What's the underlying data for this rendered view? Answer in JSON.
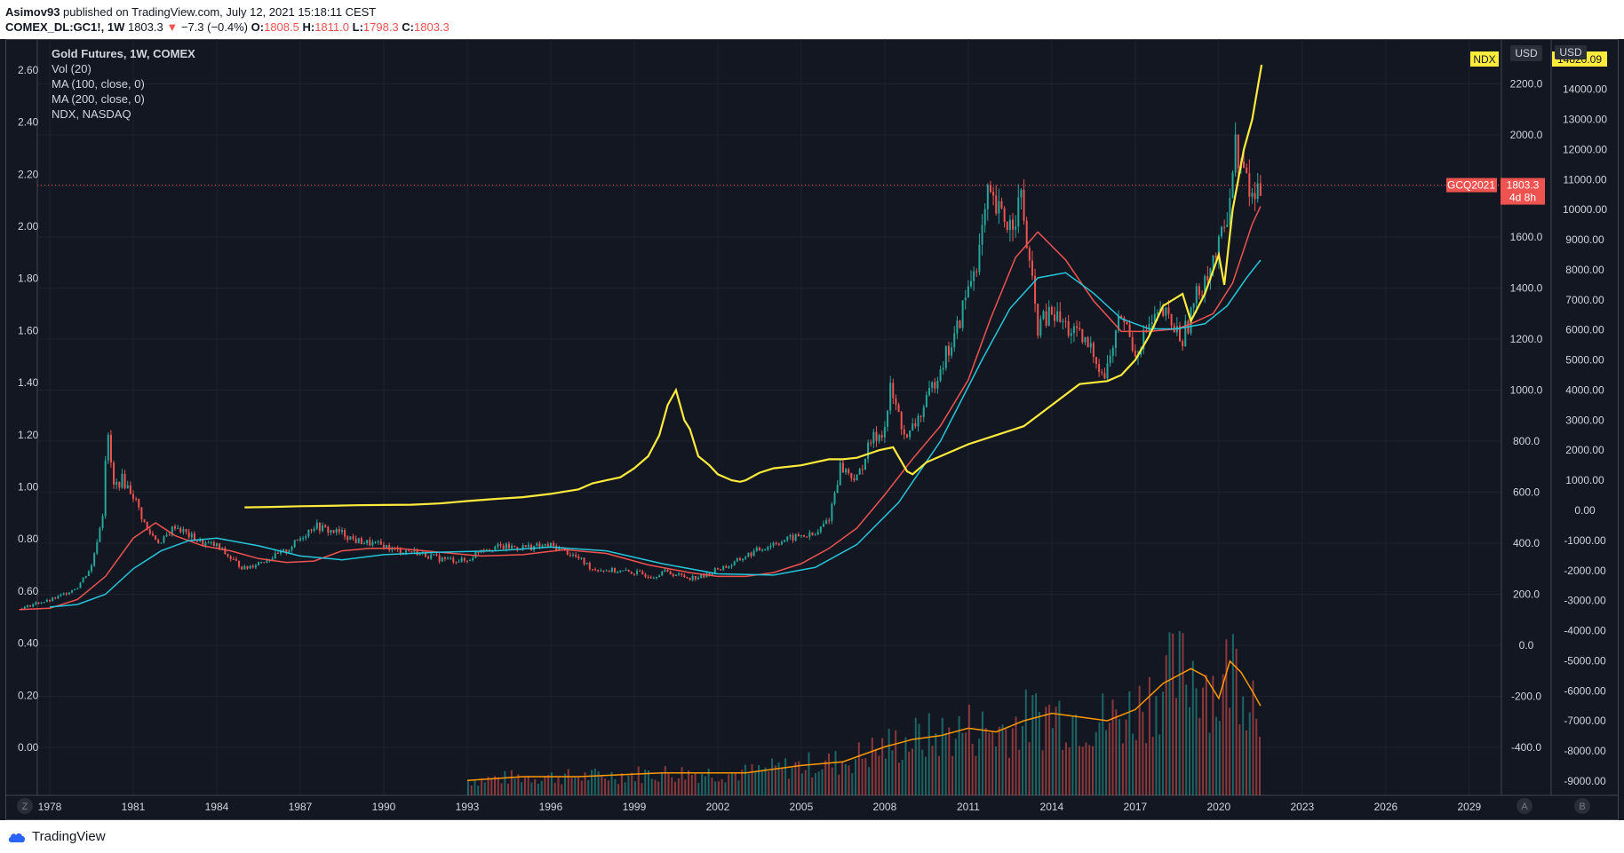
{
  "header": {
    "author": "Asimov93",
    "published": "published on TradingView.com, July 12, 2021 15:18:11 CEST",
    "symbol": "COMEX_DL:GC1!, 1W",
    "last": "1803.3",
    "arrow": "▼",
    "change": "−7.3 (−0.4%)",
    "o_label": "O:",
    "o_value": "1808.5",
    "h_label": "H:",
    "h_value": "1811.0",
    "l_label": "L:",
    "l_value": "1798.3",
    "c_label": "C:",
    "c_value": "1803.3"
  },
  "legend": {
    "title": "Gold Futures, 1W, COMEX",
    "vol": "Vol (20)",
    "ma100": "MA (100, close, 0)",
    "ma200": "MA (200, close, 0)",
    "ndx": "NDX, NASDAQ"
  },
  "badges": {
    "ndx": "NDX",
    "usd1": "USD",
    "usd2": "USD",
    "gc_symbol": "GCQ2021",
    "gc_price": "1803.3",
    "gc_countdown": "4d 8h",
    "ndx_price": "14820.09"
  },
  "footer": {
    "brand": "TradingView",
    "btn_z": "Z",
    "btn_a": "A",
    "btn_b": "B"
  },
  "colors": {
    "background": "#131722",
    "gold_up": "#26a69a",
    "gold_down": "#ef5350",
    "ma100": "#ef5350",
    "ma200": "#26c6da",
    "ndx": "#ffeb3b",
    "vol_ma": "#ff9800"
  },
  "chart_data": {
    "type": "line",
    "x_ticks": [
      "1978",
      "1981",
      "1984",
      "1987",
      "1990",
      "1993",
      "1996",
      "1999",
      "2002",
      "2005",
      "2008",
      "2011",
      "2014",
      "2017",
      "2020",
      "2023",
      "2026",
      "2029"
    ],
    "left_axis_ticks": [
      "0.00",
      "0.20",
      "0.40",
      "0.60",
      "0.80",
      "1.00",
      "1.20",
      "1.40",
      "1.60",
      "1.80",
      "2.00",
      "2.20",
      "2.40",
      "2.60"
    ],
    "gold_axis_ticks": [
      "-400.0",
      "-200.0",
      "0.0",
      "200.0",
      "400.0",
      "600.0",
      "800.0",
      "1000.0",
      "1200.0",
      "1400.0",
      "1600.0",
      "1800.0",
      "2000.0",
      "2200.0"
    ],
    "ndx_axis_ticks": [
      "-9000.00",
      "-8000.00",
      "-7000.00",
      "-6000.00",
      "-5000.00",
      "-4000.00",
      "-3000.00",
      "-2000.00",
      "-1000.00",
      "0.00",
      "1000.00",
      "2000.00",
      "3000.00",
      "4000.00",
      "5000.00",
      "6000.00",
      "7000.00",
      "8000.00",
      "9000.00",
      "10000.00",
      "11000.00",
      "12000.00",
      "13000.00",
      "14000.00"
    ],
    "last_price_line": 1803.3,
    "series": [
      {
        "name": "Gold Futures",
        "axis": "gold",
        "x": [
          1976.9,
          1977.5,
          1978.0,
          1978.5,
          1979.0,
          1979.5,
          1979.9,
          1980.05,
          1980.3,
          1980.6,
          1981.0,
          1981.5,
          1982.0,
          1982.5,
          1983.0,
          1983.5,
          1984.0,
          1984.5,
          1985.0,
          1985.5,
          1986.0,
          1986.5,
          1987.0,
          1987.5,
          1988.0,
          1988.5,
          1989.0,
          1989.5,
          1990.0,
          1990.5,
          1991.0,
          1992.0,
          1993.0,
          1993.5,
          1994.0,
          1995.0,
          1996.0,
          1996.5,
          1997.0,
          1997.5,
          1998.0,
          1999.0,
          1999.7,
          2000.0,
          2001.0,
          2001.5,
          2002.0,
          2002.5,
          2003.0,
          2004.0,
          2005.0,
          2005.5,
          2006.0,
          2006.4,
          2007.0,
          2007.5,
          2008.0,
          2008.2,
          2008.8,
          2009.0,
          2009.5,
          2010.0,
          2010.5,
          2011.0,
          2011.4,
          2011.7,
          2012.0,
          2012.5,
          2012.9,
          2013.3,
          2013.5,
          2014.0,
          2014.5,
          2015.0,
          2015.5,
          2015.9,
          2016.5,
          2017.0,
          2017.5,
          2018.0,
          2018.7,
          2019.0,
          2019.5,
          2020.0,
          2020.3,
          2020.6,
          2020.9,
          2021.2,
          2021.5
        ],
        "y": [
          140,
          165,
          175,
          200,
          230,
          310,
          520,
          850,
          620,
          650,
          590,
          450,
          400,
          470,
          430,
          400,
          390,
          340,
          300,
          325,
          345,
          370,
          420,
          470,
          450,
          440,
          410,
          400,
          390,
          370,
          370,
          340,
          330,
          380,
          385,
          385,
          390,
          370,
          340,
          300,
          295,
          285,
          270,
          290,
          265,
          270,
          300,
          315,
          350,
          400,
          430,
          430,
          500,
          700,
          650,
          800,
          850,
          1000,
          800,
          850,
          950,
          1100,
          1200,
          1400,
          1550,
          1750,
          1700,
          1650,
          1750,
          1400,
          1250,
          1300,
          1250,
          1200,
          1150,
          1050,
          1300,
          1150,
          1250,
          1300,
          1200,
          1300,
          1450,
          1550,
          1700,
          1950,
          1850,
          1750,
          1800
        ]
      },
      {
        "name": "MA (100, close, 0)",
        "axis": "gold",
        "x": [
          1976.9,
          1978.0,
          1979.0,
          1980.0,
          1981.0,
          1981.8,
          1982.5,
          1983.5,
          1984.5,
          1985.5,
          1986.5,
          1987.5,
          1988.5,
          1989.5,
          1990.5,
          1992.0,
          1993.5,
          1995.0,
          1996.5,
          1998.0,
          1999.5,
          2001.0,
          2002.0,
          2003.0,
          2004.0,
          2005.0,
          2006.0,
          2007.0,
          2008.0,
          2009.0,
          2010.0,
          2011.0,
          2011.8,
          2012.7,
          2013.5,
          2014.5,
          2015.5,
          2016.5,
          2017.5,
          2018.5,
          2019.0,
          2019.8,
          2020.5,
          2021.2,
          2021.5
        ],
        "y": [
          140,
          145,
          180,
          270,
          420,
          480,
          430,
          390,
          370,
          340,
          325,
          330,
          370,
          380,
          380,
          365,
          350,
          355,
          375,
          360,
          315,
          285,
          270,
          270,
          285,
          320,
          380,
          460,
          590,
          730,
          860,
          1040,
          1280,
          1520,
          1620,
          1510,
          1350,
          1230,
          1230,
          1240,
          1260,
          1300,
          1420,
          1650,
          1720
        ]
      },
      {
        "name": "MA (200, close, 0)",
        "axis": "gold",
        "x": [
          1978.0,
          1979.0,
          1980.0,
          1981.0,
          1982.0,
          1983.0,
          1984.0,
          1985.5,
          1987.0,
          1988.5,
          1990.0,
          1992.0,
          1994.0,
          1996.0,
          1998.0,
          2000.0,
          2002.0,
          2004.0,
          2005.5,
          2007.0,
          2008.5,
          2010.0,
          2011.5,
          2012.5,
          2013.5,
          2014.5,
          2015.5,
          2016.5,
          2017.5,
          2018.5,
          2019.5,
          2020.3,
          2021.0,
          2021.5
        ],
        "y": [
          150,
          160,
          200,
          300,
          370,
          410,
          420,
          390,
          350,
          335,
          355,
          365,
          370,
          385,
          370,
          320,
          280,
          275,
          305,
          395,
          560,
          800,
          1120,
          1320,
          1440,
          1460,
          1380,
          1280,
          1240,
          1240,
          1260,
          1330,
          1440,
          1510
        ]
      },
      {
        "name": "NDX, NASDAQ",
        "axis": "ndx",
        "x": [
          1985.0,
          1986.0,
          1987.0,
          1988.0,
          1989.0,
          1990.0,
          1991.0,
          1992.0,
          1993.0,
          1994.0,
          1995.0,
          1996.0,
          1997.0,
          1997.5,
          1998.0,
          1998.5,
          1999.0,
          1999.5,
          1999.9,
          2000.2,
          2000.5,
          2000.8,
          2001.0,
          2001.3,
          2001.7,
          2002.0,
          2002.5,
          2002.8,
          2003.0,
          2003.5,
          2004.0,
          2005.0,
          2006.0,
          2006.5,
          2007.0,
          2007.8,
          2008.3,
          2008.8,
          2009.0,
          2009.5,
          2010.0,
          2011.0,
          2012.0,
          2013.0,
          2014.0,
          2015.0,
          2016.0,
          2016.5,
          2017.0,
          2017.5,
          2018.0,
          2018.7,
          2019.0,
          2019.5,
          2020.0,
          2020.2,
          2020.5,
          2020.9,
          2021.2,
          2021.54
        ],
        "y": [
          100,
          115,
          140,
          150,
          170,
          180,
          190,
          230,
          310,
          380,
          440,
          550,
          700,
          900,
          1000,
          1100,
          1400,
          1800,
          2500,
          3500,
          4000,
          3000,
          2700,
          1800,
          1500,
          1200,
          1000,
          950,
          1000,
          1250,
          1400,
          1500,
          1700,
          1700,
          1750,
          2000,
          2100,
          1300,
          1200,
          1600,
          1800,
          2200,
          2500,
          2800,
          3500,
          4200,
          4300,
          4500,
          5000,
          5800,
          6800,
          7200,
          6300,
          7200,
          8500,
          7500,
          10000,
          12000,
          13000,
          14820.09
        ]
      }
    ],
    "volume_envelope": {
      "x": [
        1993.0,
        1995.0,
        1997.0,
        2000.0,
        2003.0,
        2005.0,
        2006.5,
        2008.0,
        2009.0,
        2010.0,
        2011.0,
        2012.0,
        2013.0,
        2014.0,
        2015.0,
        2016.0,
        2017.0,
        2018.0,
        2019.0,
        2019.5,
        2020.0,
        2020.4,
        2020.8,
        2021.2,
        2021.5
      ],
      "y": [
        4,
        5,
        5,
        6,
        6,
        8,
        9,
        13,
        15,
        16,
        18,
        17,
        20,
        22,
        21,
        20,
        23,
        30,
        34,
        32,
        26,
        36,
        33,
        28,
        24
      ]
    }
  }
}
